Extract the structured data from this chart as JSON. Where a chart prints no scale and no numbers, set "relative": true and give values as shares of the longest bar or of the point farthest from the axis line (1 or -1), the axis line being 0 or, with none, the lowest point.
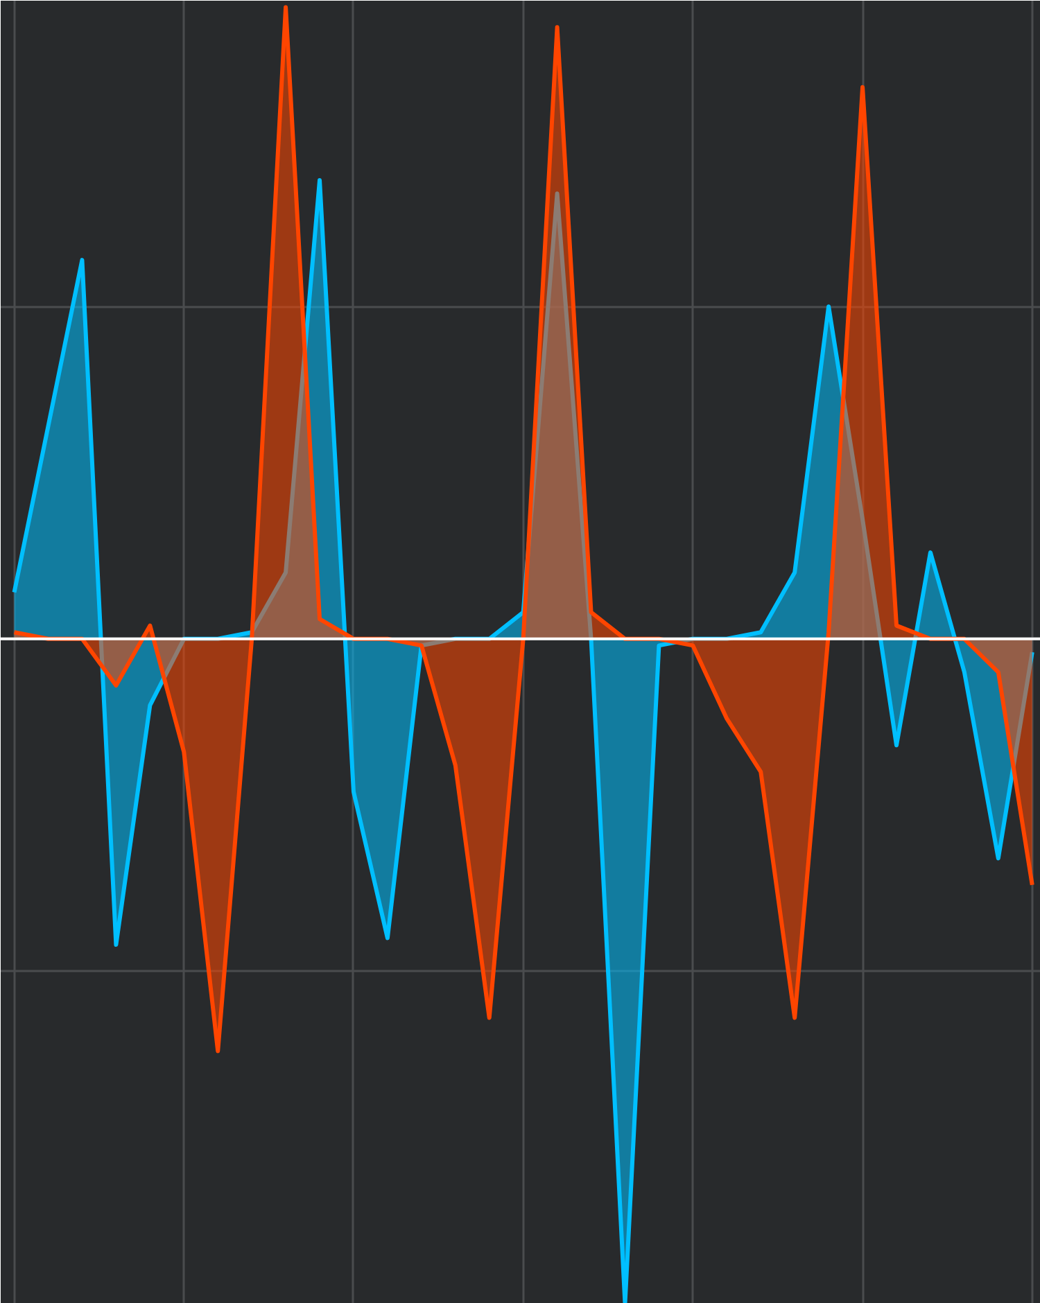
{
  "chart_data": {
    "type": "area",
    "relative": true,
    "grid": true,
    "categories": [
      null,
      null,
      null,
      null,
      null,
      null,
      null,
      null,
      null,
      null,
      null,
      null,
      null,
      null,
      null,
      null,
      null,
      null,
      null,
      null,
      null,
      null,
      null,
      null,
      null,
      null,
      null,
      null,
      null,
      null,
      null
    ],
    "series": [
      {
        "color": "#00bfff",
        "values": [
          0.07,
          0.32,
          0.57,
          -0.46,
          -0.1,
          0.0,
          0.0,
          0.01,
          0.1,
          0.69,
          -0.23,
          -0.45,
          -0.01,
          0.0,
          0.0,
          0.04,
          0.67,
          0.0,
          -1,
          -0.01,
          0.0,
          0.0,
          0.01,
          0.1,
          0.5,
          0.18,
          -0.16,
          0.13,
          -0.05,
          -0.33,
          -0.02
        ]
      },
      {
        "color": "#ff4500",
        "values": [
          0.01,
          0.0,
          0.0,
          -0.07,
          0.02,
          -0.17,
          -0.62,
          0.0,
          0.95,
          0.03,
          0.0,
          0.0,
          -0.01,
          -0.19,
          -0.57,
          0.0,
          0.92,
          0.04,
          0.0,
          0.0,
          -0.01,
          -0.12,
          -0.2,
          -0.57,
          0.01,
          0.83,
          0.02,
          0.0,
          0.0,
          -0.05,
          -0.37
        ]
      }
    ]
  }
}
